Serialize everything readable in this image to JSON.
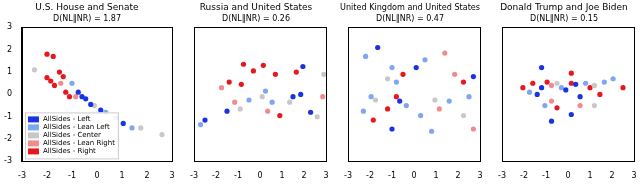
{
  "chart_data": [
    {
      "type": "scatter",
      "title": "U.S. House and Senate",
      "subtitle": "D(NL‖NR) = 1.87",
      "xlim": [
        -3,
        3
      ],
      "xticks": [
        -3,
        -2,
        -1,
        0,
        1,
        2,
        3
      ],
      "ylim": [
        -3,
        3
      ],
      "yticks": [
        -3,
        -2,
        -1,
        0,
        1,
        2,
        3
      ],
      "grid": false,
      "legend": "lower left",
      "series": [
        {
          "name": "AllSides - Left",
          "color": "#1a33e0",
          "x": [
            -0.75,
            -0.6,
            -0.45,
            -0.25,
            0.15,
            1.05
          ],
          "y": [
            0.1,
            -0.1,
            -0.2,
            -0.45,
            -0.7,
            -1.3
          ]
        },
        {
          "name": "AllSides - Lean Left",
          "color": "#7fa6f0",
          "x": [
            -1.0,
            0.35,
            0.75,
            1.4
          ],
          "y": [
            0.5,
            -0.8,
            -1.05,
            -1.5
          ]
        },
        {
          "name": "AllSides - Center",
          "color": "#c8c8c8",
          "x": [
            -2.5,
            -0.1,
            1.75,
            2.6
          ],
          "y": [
            1.1,
            -0.5,
            -1.5,
            -1.8
          ]
        },
        {
          "name": "AllSides - Lean Right",
          "color": "#f28c8c",
          "x": [
            -1.45,
            -0.85
          ],
          "y": [
            0.5,
            -0.1
          ]
        },
        {
          "name": "AllSides - Right",
          "color": "#e8171f",
          "x": [
            -2.0,
            -1.75,
            -2.0,
            -1.85,
            -1.7,
            -1.5,
            -1.35,
            -1.25,
            -1.1
          ],
          "y": [
            1.8,
            1.7,
            0.75,
            0.6,
            0.4,
            1.0,
            0.8,
            0.1,
            -0.1
          ]
        }
      ]
    },
    {
      "type": "scatter",
      "title": "Russia and United States",
      "subtitle": "D(NL‖NR) = 0.26",
      "xlim": [
        -3,
        3
      ],
      "xticks": [
        -3,
        -2,
        -1,
        0,
        1,
        2,
        3
      ],
      "ylim": [
        -3,
        3
      ],
      "yticks": [
        -3,
        -2,
        -1,
        0,
        1,
        2,
        3
      ],
      "grid": false,
      "tick_labels": "x",
      "series": [
        {
          "name": "AllSides - Left",
          "color": "#1a33e0",
          "x": [
            1.5,
            1.95,
            1.85,
            -2.5,
            -1.5,
            2.3
          ],
          "y": [
            -0.1,
            1.25,
            0.0,
            -1.15,
            -0.75,
            -0.8
          ]
        },
        {
          "name": "AllSides - Lean Left",
          "color": "#7fa6f0",
          "x": [
            0.25,
            -0.5,
            0.55,
            -2.7
          ],
          "y": [
            0.15,
            -0.25,
            -0.35,
            -1.35
          ]
        },
        {
          "name": "AllSides - Center",
          "color": "#c8c8c8",
          "x": [
            0.1,
            1.35,
            -0.9,
            2.6,
            2.9
          ],
          "y": [
            -0.1,
            -0.35,
            -0.65,
            -1.0,
            0.9
          ]
        },
        {
          "name": "AllSides - Lean Right",
          "color": "#f28c8c",
          "x": [
            -1.75,
            -1.15,
            0.35,
            2.85
          ],
          "y": [
            0.3,
            -0.35,
            -0.75,
            -0.1
          ]
        },
        {
          "name": "AllSides - Right",
          "color": "#e8171f",
          "x": [
            -0.75,
            -0.3,
            0.15,
            0.7,
            -1.4,
            -0.85,
            1.65,
            0.9
          ],
          "y": [
            1.35,
            1.05,
            1.3,
            0.9,
            0.55,
            0.45,
            1.0,
            -0.95
          ]
        }
      ]
    },
    {
      "type": "scatter",
      "title": "United Kingdom and United States",
      "subtitle": "D(NL‖NR) = 0.47",
      "xlim": [
        -3,
        3
      ],
      "xticks": [
        -3,
        -2,
        -1,
        0,
        1,
        2,
        3
      ],
      "ylim": [
        -3,
        3
      ],
      "yticks": [
        -3,
        -2,
        -1,
        0,
        1,
        2,
        3
      ],
      "grid": false,
      "tick_labels": "x",
      "series": [
        {
          "name": "AllSides - Left",
          "color": "#1a33e0",
          "x": [
            -1.65,
            0.1,
            2.7,
            -0.65,
            -1.0
          ],
          "y": [
            2.1,
            1.2,
            0.8,
            -0.3,
            -1.55
          ]
        },
        {
          "name": "AllSides - Lean Left",
          "color": "#7fa6f0",
          "x": [
            -2.2,
            -1.0,
            -0.8,
            0.5,
            2.5,
            -0.35,
            -1.95,
            -2.3,
            0.3,
            1.6,
            0.8
          ],
          "y": [
            1.7,
            1.2,
            0.55,
            1.55,
            -0.1,
            -0.5,
            -0.1,
            -0.75,
            -0.95,
            -0.3,
            -1.65
          ]
        },
        {
          "name": "AllSides - Center",
          "color": "#c8c8c8",
          "x": [
            -1.2,
            -1.75,
            0.95,
            2.25
          ],
          "y": [
            0.7,
            -0.25,
            -0.25,
            -0.95
          ]
        },
        {
          "name": "AllSides - Lean Right",
          "color": "#f28c8c",
          "x": [
            1.4,
            1.85,
            1.15,
            2.7
          ],
          "y": [
            1.85,
            0.9,
            -0.65,
            -1.55
          ]
        },
        {
          "name": "AllSides - Right",
          "color": "#e8171f",
          "x": [
            -0.5,
            2.25,
            -0.8,
            -1.85,
            -1.2
          ],
          "y": [
            0.9,
            0.55,
            -0.1,
            -1.15,
            -0.65
          ]
        }
      ]
    },
    {
      "type": "scatter",
      "title": "Donald Trump and Joe Biden",
      "subtitle": "D(NL‖NR) = 0.15",
      "xlim": [
        -3,
        3
      ],
      "xticks": [
        -3,
        -2,
        -1,
        0,
        1,
        2,
        3
      ],
      "ylim": [
        -3,
        3
      ],
      "yticks": [
        -3,
        -2,
        -1,
        0,
        1,
        2,
        3
      ],
      "grid": false,
      "tick_labels": "x",
      "series": [
        {
          "name": "AllSides - Left",
          "color": "#1a33e0",
          "x": [
            -1.4,
            -1.2,
            -0.1,
            0.35,
            0.55,
            0.15,
            -0.75,
            -1.2
          ],
          "y": [
            0.0,
            0.3,
            0.2,
            0.45,
            -0.1,
            -0.9,
            -1.2,
            1.2
          ]
        },
        {
          "name": "AllSides - Lean Left",
          "color": "#7fa6f0",
          "x": [
            -1.75,
            -0.3,
            0.8,
            1.65,
            -1.05,
            2.05
          ],
          "y": [
            0.1,
            0.3,
            0.5,
            0.55,
            -0.5,
            0.7
          ]
        },
        {
          "name": "AllSides - Center",
          "color": "#c8c8c8",
          "x": [
            -0.5,
            1.2,
            1.2
          ],
          "y": [
            0.5,
            0.4,
            -0.5
          ]
        },
        {
          "name": "AllSides - Lean Right",
          "color": "#f28c8c",
          "x": [
            -0.75,
            0.55,
            -0.75
          ],
          "y": [
            0.4,
            -0.5,
            -0.3
          ]
        },
        {
          "name": "AllSides - Right",
          "color": "#e8171f",
          "x": [
            -2.05,
            -1.6,
            -0.95,
            0.15,
            1.0,
            1.45,
            -0.5,
            0.15,
            2.5
          ],
          "y": [
            0.3,
            0.5,
            0.55,
            0.5,
            0.3,
            0.0,
            -0.6,
            0.95,
            0.3
          ]
        }
      ]
    }
  ]
}
